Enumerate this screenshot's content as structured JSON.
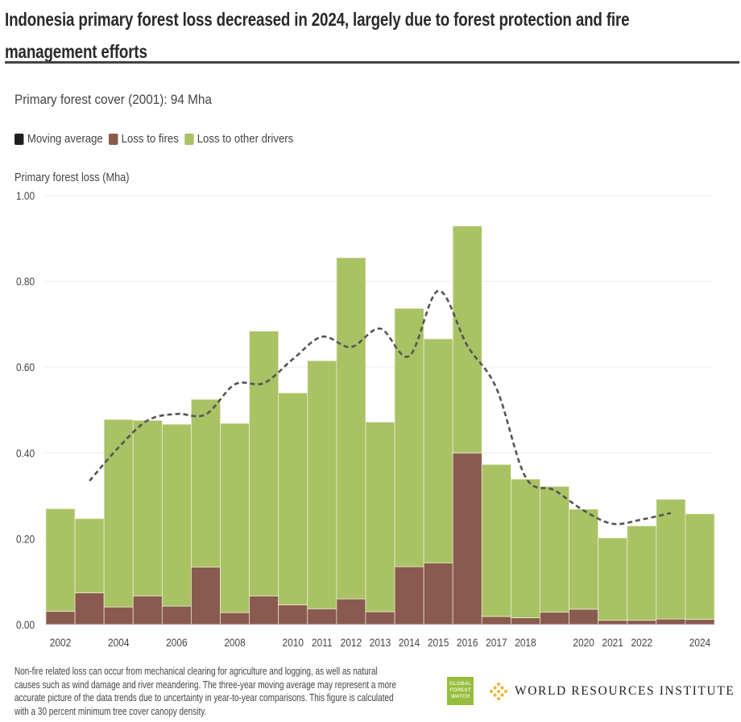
{
  "title": "Indonesia primary forest loss decreased in 2024, largely due to forest protection and fire management efforts",
  "subtitle": "Primary forest cover (2001): 94 Mha",
  "legend": [
    {
      "label": "Moving average",
      "color": "#1e1e22"
    },
    {
      "label": "Loss to fires",
      "color": "#8a5a4e"
    },
    {
      "label": "Loss to other drivers",
      "color": "#a9c264"
    }
  ],
  "footnote": "Non-fire related loss can occur from mechanical clearing for agriculture and logging, as well as natural causes such as wind damage and river meandering. The three-year moving average may represent a more accurate picture of the data trends due to uncertainty in year-to-year comparisons. This figure is calculated with a 30 percent minimum tree cover canopy density.",
  "logos": {
    "gfw": "GLOBAL FOREST WATCH",
    "wri": "WORLD RESOURCES INSTITUTE"
  },
  "chart_data": {
    "type": "bar",
    "stacked": true,
    "ylabel": "Primary forest loss (Mha)",
    "ylim": [
      0,
      1.0
    ],
    "yticks": [
      "0.00",
      "0.20",
      "0.40",
      "0.60",
      "0.80",
      "1.00"
    ],
    "grid": true,
    "legend_position": "top-left",
    "categories": [
      2002,
      2003,
      2004,
      2005,
      2006,
      2007,
      2008,
      2009,
      2010,
      2011,
      2012,
      2013,
      2014,
      2015,
      2016,
      2017,
      2018,
      2019,
      2020,
      2021,
      2022,
      2023,
      2024
    ],
    "xtick_labels": [
      "2002",
      "",
      "2004",
      "",
      "2006",
      "",
      "2008",
      "",
      "2010",
      "2011",
      "2012",
      "2013",
      "2014",
      "2015",
      "2016",
      "2017",
      "2018",
      "",
      "2020",
      "2021",
      "2022",
      "",
      "2024"
    ],
    "series": [
      {
        "name": "Loss to fires",
        "color": "#8a5a4e",
        "values": [
          0.031,
          0.074,
          0.041,
          0.067,
          0.043,
          0.134,
          0.028,
          0.067,
          0.046,
          0.037,
          0.06,
          0.03,
          0.135,
          0.144,
          0.4,
          0.019,
          0.016,
          0.029,
          0.036,
          0.01,
          0.01,
          0.013,
          0.012
        ]
      },
      {
        "name": "Loss to other drivers",
        "color": "#a9c264",
        "values": [
          0.239,
          0.173,
          0.437,
          0.409,
          0.424,
          0.391,
          0.441,
          0.617,
          0.494,
          0.578,
          0.795,
          0.442,
          0.602,
          0.522,
          0.529,
          0.354,
          0.323,
          0.293,
          0.233,
          0.192,
          0.22,
          0.279,
          0.246
        ]
      },
      {
        "name": "Moving average",
        "type": "line",
        "style": "dashed",
        "color": "#555555",
        "x": [
          2003,
          2004,
          2005,
          2006,
          2007,
          2008,
          2009,
          2010,
          2011,
          2012,
          2013,
          2014,
          2015,
          2016,
          2017,
          2018,
          2019,
          2020,
          2021,
          2022,
          2023
        ],
        "values": [
          0.335,
          0.413,
          0.476,
          0.491,
          0.49,
          0.56,
          0.563,
          0.619,
          0.671,
          0.647,
          0.69,
          0.626,
          0.778,
          0.65,
          0.551,
          0.344,
          0.313,
          0.266,
          0.235,
          0.245,
          0.26
        ]
      }
    ]
  }
}
